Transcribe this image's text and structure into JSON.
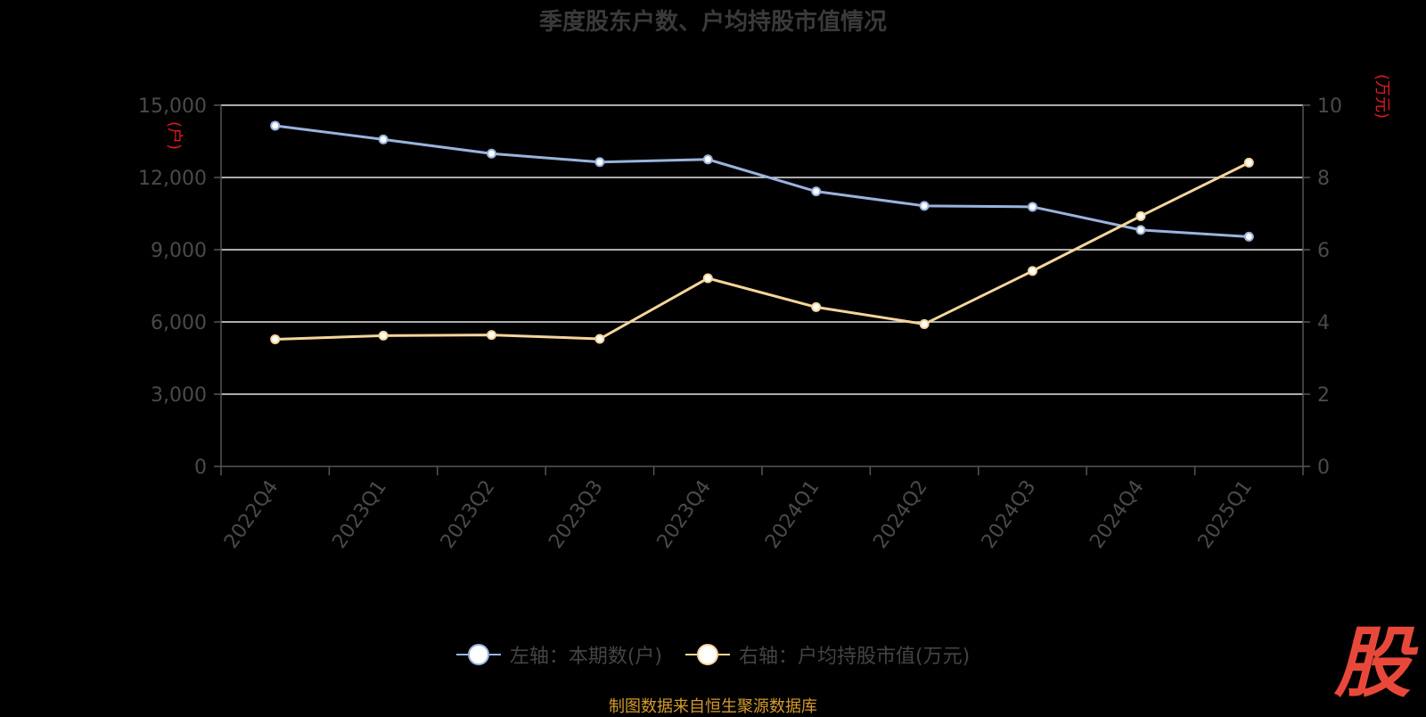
{
  "chart_data": {
    "type": "line",
    "title": "季度股东户数、户均持股市值情况",
    "categories": [
      "2022Q4",
      "2023Q1",
      "2023Q2",
      "2023Q3",
      "2023Q4",
      "2024Q1",
      "2024Q2",
      "2024Q3",
      "2024Q4",
      "2025Q1"
    ],
    "y_left": {
      "unit_label": "(户)",
      "ylim": [
        0,
        15000
      ],
      "ticks": [
        "0",
        "3,000",
        "6,000",
        "9,000",
        "12,000",
        "15,000"
      ]
    },
    "y_right": {
      "unit_label": "(万元)",
      "ylim": [
        0,
        10
      ],
      "ticks": [
        "0",
        "2",
        "4",
        "6",
        "8",
        "10"
      ]
    },
    "series": [
      {
        "name": "左轴：本期数(户)",
        "axis": "left",
        "color": "#9ab3dd",
        "values": [
          14150,
          13580,
          12990,
          12640,
          12750,
          11420,
          10820,
          10780,
          9820,
          9540
        ]
      },
      {
        "name": "右轴：户均持股市值(万元)",
        "axis": "right",
        "color": "#f5d59a",
        "values": [
          3.52,
          3.62,
          3.64,
          3.53,
          5.21,
          4.41,
          3.94,
          5.41,
          6.93,
          8.41
        ]
      }
    ],
    "grid": true,
    "legend_position": "bottom-center"
  },
  "footer": {
    "source": "制图数据来自恒生聚源数据库",
    "logo_text": "股"
  }
}
